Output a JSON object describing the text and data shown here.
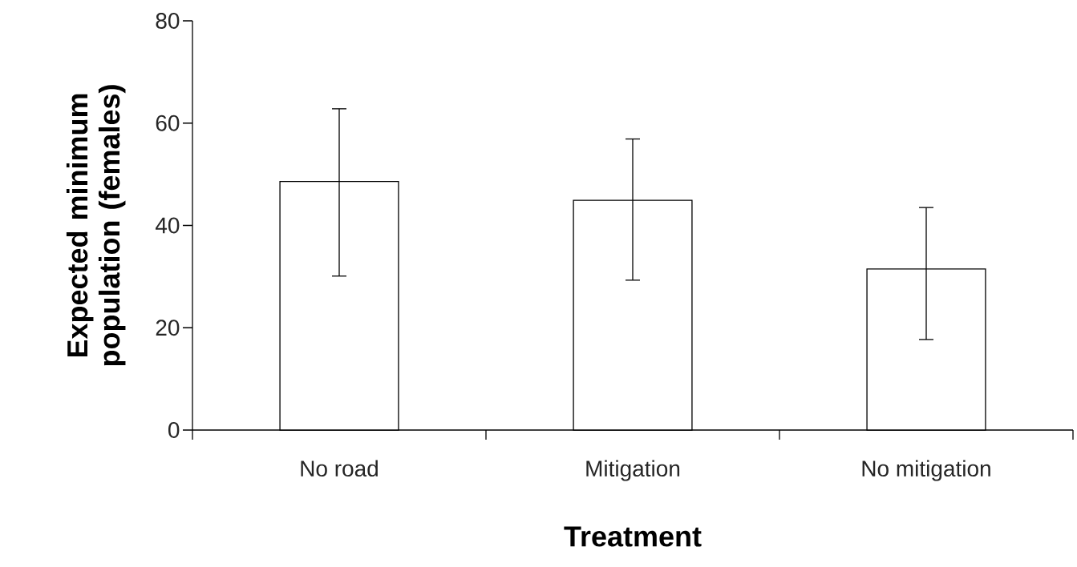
{
  "chart_data": {
    "type": "bar",
    "xlabel": "Treatment",
    "ylabel": "Expected minimum population (females)",
    "categories": [
      "No road",
      "Mitigation",
      "No mitigation"
    ],
    "values": [
      48.6,
      44.9,
      31.5
    ],
    "errors": [
      [
        30.1,
        62.8
      ],
      [
        29.3,
        56.9
      ],
      [
        17.7,
        43.5
      ]
    ],
    "color": "#ffffff",
    "ylim": [
      0,
      80
    ],
    "yticks": [
      0,
      20,
      40,
      60,
      80
    ],
    "grid": false
  }
}
